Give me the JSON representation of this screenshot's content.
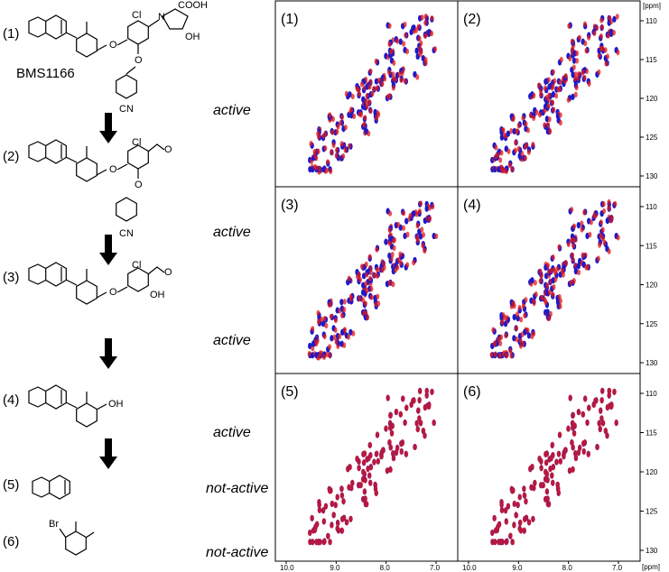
{
  "compounds": [
    {
      "label": "(1)",
      "name": "BMS1166",
      "activity": "active"
    },
    {
      "label": "(2)",
      "activity": "active"
    },
    {
      "label": "(3)",
      "activity": "active"
    },
    {
      "label": "(4)",
      "activity": "active"
    },
    {
      "label": "(5)",
      "activity": "not-active"
    },
    {
      "label": "(6)",
      "activity": "not-active"
    }
  ],
  "atoms": {
    "cl": "Cl",
    "cooh": "COOH",
    "n": "N",
    "oh": "OH",
    "o": "O",
    "cn": "CN",
    "br": "Br"
  },
  "spectra": {
    "panels": [
      "(1)",
      "(2)",
      "(3)",
      "(4)",
      "(5)",
      "(6)"
    ],
    "x_ticks": [
      "10.0",
      "9.0",
      "8.0",
      "7.0"
    ],
    "x_unit": "[ppm]",
    "y_ticks": [
      "110",
      "115",
      "120",
      "125",
      "130"
    ],
    "y_unit": "[ppm]",
    "colors": {
      "reference": "#1a1acc",
      "ligand": "#e01818",
      "overlap": "#8a1a6a"
    }
  }
}
